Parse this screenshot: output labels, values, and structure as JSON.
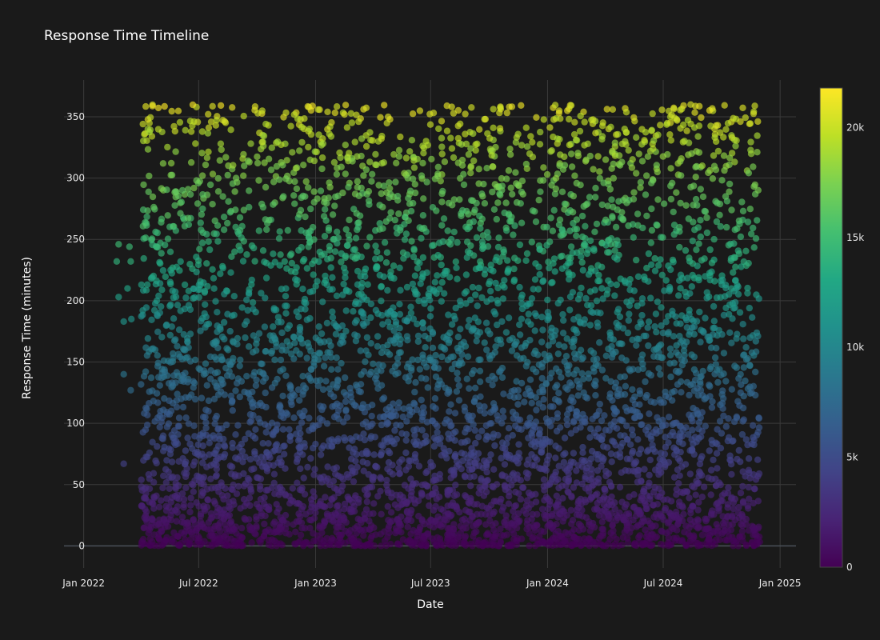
{
  "chart_data": {
    "type": "scatter",
    "title": "Response Time Timeline",
    "xlabel": "Date",
    "ylabel": "Response Time (minutes)",
    "x_range": [
      "2021-12-01",
      "2025-01-26"
    ],
    "y_range": [
      -18,
      380
    ],
    "x_ticks": [
      {
        "value": "2022-01-01",
        "label": "Jan 2022"
      },
      {
        "value": "2022-07-01",
        "label": "Jul 2022"
      },
      {
        "value": "2023-01-01",
        "label": "Jan 2023"
      },
      {
        "value": "2023-07-01",
        "label": "Jul 2023"
      },
      {
        "value": "2024-01-01",
        "label": "Jan 2024"
      },
      {
        "value": "2024-07-01",
        "label": "Jul 2024"
      },
      {
        "value": "2025-01-01",
        "label": "Jan 2025"
      }
    ],
    "y_ticks": [
      {
        "value": 0,
        "label": "0"
      },
      {
        "value": 50,
        "label": "50"
      },
      {
        "value": 100,
        "label": "100"
      },
      {
        "value": 150,
        "label": "150"
      },
      {
        "value": 200,
        "label": "200"
      },
      {
        "value": 250,
        "label": "250"
      },
      {
        "value": 300,
        "label": "300"
      },
      {
        "value": 350,
        "label": "350"
      }
    ],
    "grid": true,
    "marker_opacity": 0.65,
    "colorscale": "Viridis",
    "colorbar": {
      "range": [
        0,
        21800
      ],
      "ticks": [
        {
          "value": 0,
          "label": "0"
        },
        {
          "value": 5000,
          "label": "5k"
        },
        {
          "value": 10000,
          "label": "10k"
        },
        {
          "value": 15000,
          "label": "15k"
        },
        {
          "value": 20000,
          "label": "20k"
        }
      ]
    },
    "date_span": [
      "2022-04-01",
      "2024-11-30"
    ],
    "y_max": 360,
    "outlier_points": [
      {
        "x": "2022-02-22",
        "y": 232
      },
      {
        "x": "2022-02-25",
        "y": 246
      },
      {
        "x": "2022-02-25",
        "y": 203
      },
      {
        "x": "2022-03-05",
        "y": 183
      },
      {
        "x": "2022-03-05",
        "y": 140
      },
      {
        "x": "2022-03-05",
        "y": 67
      },
      {
        "x": "2022-03-14",
        "y": 244
      },
      {
        "x": "2022-03-16",
        "y": 232
      },
      {
        "x": "2022-03-17",
        "y": 185
      },
      {
        "x": "2022-03-16",
        "y": 127
      },
      {
        "x": "2022-03-11",
        "y": 210
      }
    ]
  }
}
